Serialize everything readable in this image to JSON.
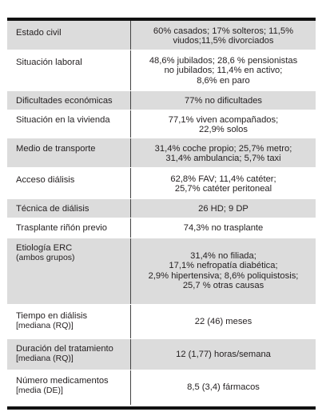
{
  "rows": [
    {
      "label": "Estado civil",
      "value": "60% casados; 17% solteros; 11,5%\nviudos;11,5% divorciados"
    },
    {
      "label": "Situación laboral",
      "value": "48,6% jubilados; 28,6 % pensionistas\nno jubilados; 11,4% en activo;\n8,6% en paro"
    },
    {
      "label": "Dificultades económicas",
      "value": "77% no dificultades"
    },
    {
      "label": "Situación en la vivienda",
      "value": "77,1% viven acompañados;\n22,9% solos"
    },
    {
      "label": "Medio de transporte",
      "value": "31,4% coche propio; 25,7% metro;\n31,4% ambulancia; 5,7% taxi"
    },
    {
      "label": "Acceso diálisis",
      "value": "62,8% FAV; 11,4% catéter;\n25,7% catéter peritoneal"
    },
    {
      "label": "Técnica de diálisis",
      "value": "26 HD; 9 DP"
    },
    {
      "label": "Trasplante riñón previo",
      "value": "74,3% no trasplante"
    },
    {
      "label": "Etiología ERC",
      "label2": "(ambos grupos)",
      "value": "31,4% no filiada;\n17,1% nefropatía diabética;\n2,9% hipertensiva; 8,6% poliquistosis;\n25,7 % otras causas"
    },
    {
      "label": "Tiempo en diálisis",
      "label2": "[mediana (RQ)]",
      "value": "22 (46) meses"
    },
    {
      "label": "Duración del tratamiento",
      "label2": "[mediana (RQ)]",
      "value": "12 (1,77) horas/semana"
    },
    {
      "label": "Número medicamentos",
      "label2": "[media (DE)]",
      "value": "8,5 (3,4) fármacos"
    }
  ]
}
